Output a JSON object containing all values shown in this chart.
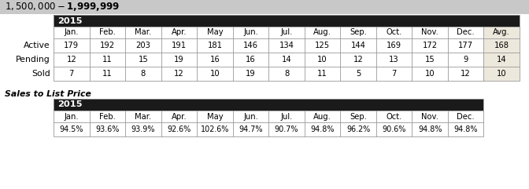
{
  "title": "$1,500,000 - $1,999,999",
  "title_bg": "#c8c8c8",
  "year_label": "2015",
  "year_bg": "#1a1a1a",
  "year_text_color": "#ffffff",
  "months": [
    "Jan.",
    "Feb.",
    "Mar.",
    "Apr.",
    "May",
    "Jun.",
    "Jul.",
    "Aug.",
    "Sep.",
    "Oct.",
    "Nov.",
    "Dec.",
    "Avg."
  ],
  "months_no_avg": [
    "Jan.",
    "Feb.",
    "Mar.",
    "Apr.",
    "May",
    "Jun.",
    "Jul.",
    "Aug.",
    "Sep.",
    "Oct.",
    "Nov.",
    "Dec."
  ],
  "row_labels": [
    "Active",
    "Pending",
    "Sold"
  ],
  "active": [
    179,
    192,
    203,
    191,
    181,
    146,
    134,
    125,
    144,
    169,
    172,
    177,
    168
  ],
  "pending": [
    12,
    11,
    15,
    19,
    16,
    16,
    14,
    10,
    12,
    13,
    15,
    9,
    14
  ],
  "sold": [
    7,
    11,
    8,
    12,
    10,
    19,
    8,
    11,
    5,
    7,
    10,
    12,
    10
  ],
  "sales_to_list_label": "Sales to List Price",
  "sales_to_list": [
    "94.5%",
    "93.6%",
    "93.9%",
    "92.6%",
    "102.6%",
    "94.7%",
    "90.7%",
    "94.8%",
    "96.2%",
    "90.6%",
    "94.8%",
    "94.8%"
  ],
  "avg_col_color": "#ede8dc",
  "table_bg": "#ffffff",
  "border_color": "#999999",
  "font_size": 7.2,
  "label_font_size": 7.8,
  "title_font_size": 8.5
}
